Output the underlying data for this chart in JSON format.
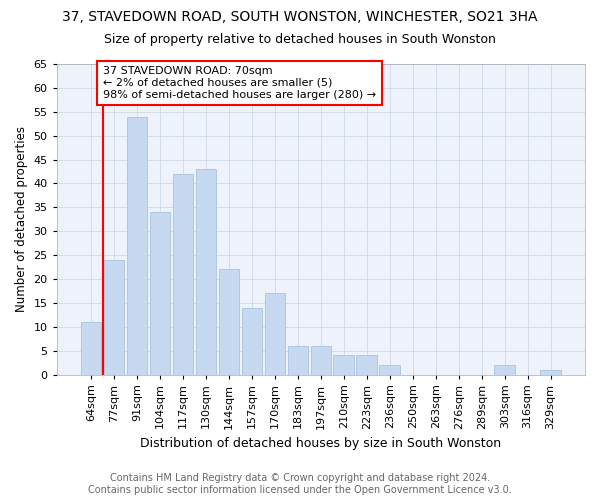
{
  "title": "37, STAVEDOWN ROAD, SOUTH WONSTON, WINCHESTER, SO21 3HA",
  "subtitle": "Size of property relative to detached houses in South Wonston",
  "xlabel": "Distribution of detached houses by size in South Wonston",
  "ylabel": "Number of detached properties",
  "categories": [
    "64sqm",
    "77sqm",
    "91sqm",
    "104sqm",
    "117sqm",
    "130sqm",
    "144sqm",
    "157sqm",
    "170sqm",
    "183sqm",
    "197sqm",
    "210sqm",
    "223sqm",
    "236sqm",
    "250sqm",
    "263sqm",
    "276sqm",
    "289sqm",
    "303sqm",
    "316sqm",
    "329sqm"
  ],
  "values": [
    11,
    24,
    54,
    34,
    42,
    43,
    22,
    14,
    17,
    6,
    6,
    4,
    4,
    2,
    0,
    0,
    0,
    0,
    2,
    0,
    1
  ],
  "bar_color": "#c6d9f0",
  "bar_edge_color": "#a8c4e0",
  "annotation_text": "37 STAVEDOWN ROAD: 70sqm\n← 2% of detached houses are smaller (5)\n98% of semi-detached houses are larger (280) →",
  "annotation_box_color": "white",
  "annotation_border_color": "red",
  "property_line_x": 0.5,
  "ylim": [
    0,
    65
  ],
  "yticks": [
    0,
    5,
    10,
    15,
    20,
    25,
    30,
    35,
    40,
    45,
    50,
    55,
    60,
    65
  ],
  "grid_color": "#d0d8e4",
  "footer_line1": "Contains HM Land Registry data © Crown copyright and database right 2024.",
  "footer_line2": "Contains public sector information licensed under the Open Government Licence v3.0.",
  "title_fontsize": 10,
  "subtitle_fontsize": 9,
  "xlabel_fontsize": 9,
  "ylabel_fontsize": 8.5,
  "tick_fontsize": 8,
  "footer_fontsize": 7,
  "annotation_fontsize": 8,
  "background_color": "#edf2fb"
}
